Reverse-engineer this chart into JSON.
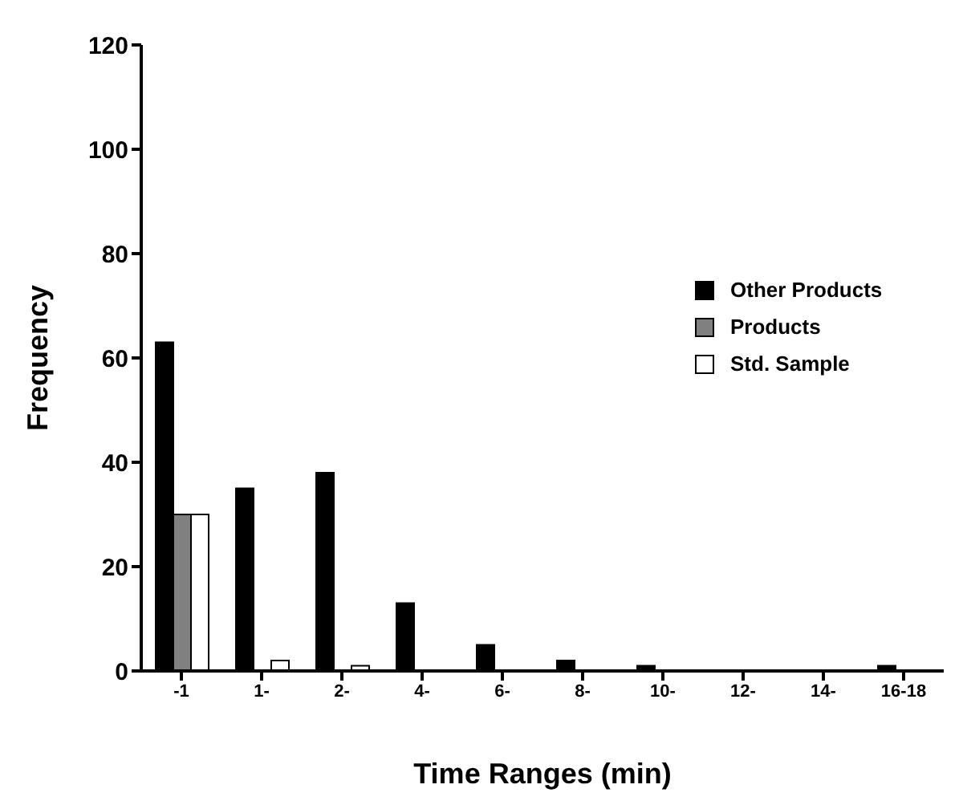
{
  "chart_data": {
    "type": "bar",
    "xlabel": "Time Ranges (min)",
    "ylabel": "Frequency",
    "categories": [
      "-1",
      "1-",
      "2-",
      "4-",
      "6-",
      "8-",
      "10-",
      "12-",
      "14-",
      "16-18"
    ],
    "series": [
      {
        "name": "Other Products",
        "color": "#000000",
        "values": [
          63,
          35,
          38,
          13,
          5,
          2,
          1,
          0,
          0,
          1
        ]
      },
      {
        "name": "Products",
        "color": "#808080",
        "values": [
          30,
          0,
          0,
          0,
          0,
          0,
          0,
          0,
          0,
          0
        ]
      },
      {
        "name": "Std. Sample",
        "color": "#ffffff",
        "values": [
          30,
          2,
          1,
          0,
          0,
          0,
          0,
          0,
          0,
          0
        ]
      }
    ],
    "ylim": [
      0,
      120
    ],
    "yticks": [
      0,
      20,
      40,
      60,
      80,
      100,
      120
    ],
    "legend": "right"
  }
}
